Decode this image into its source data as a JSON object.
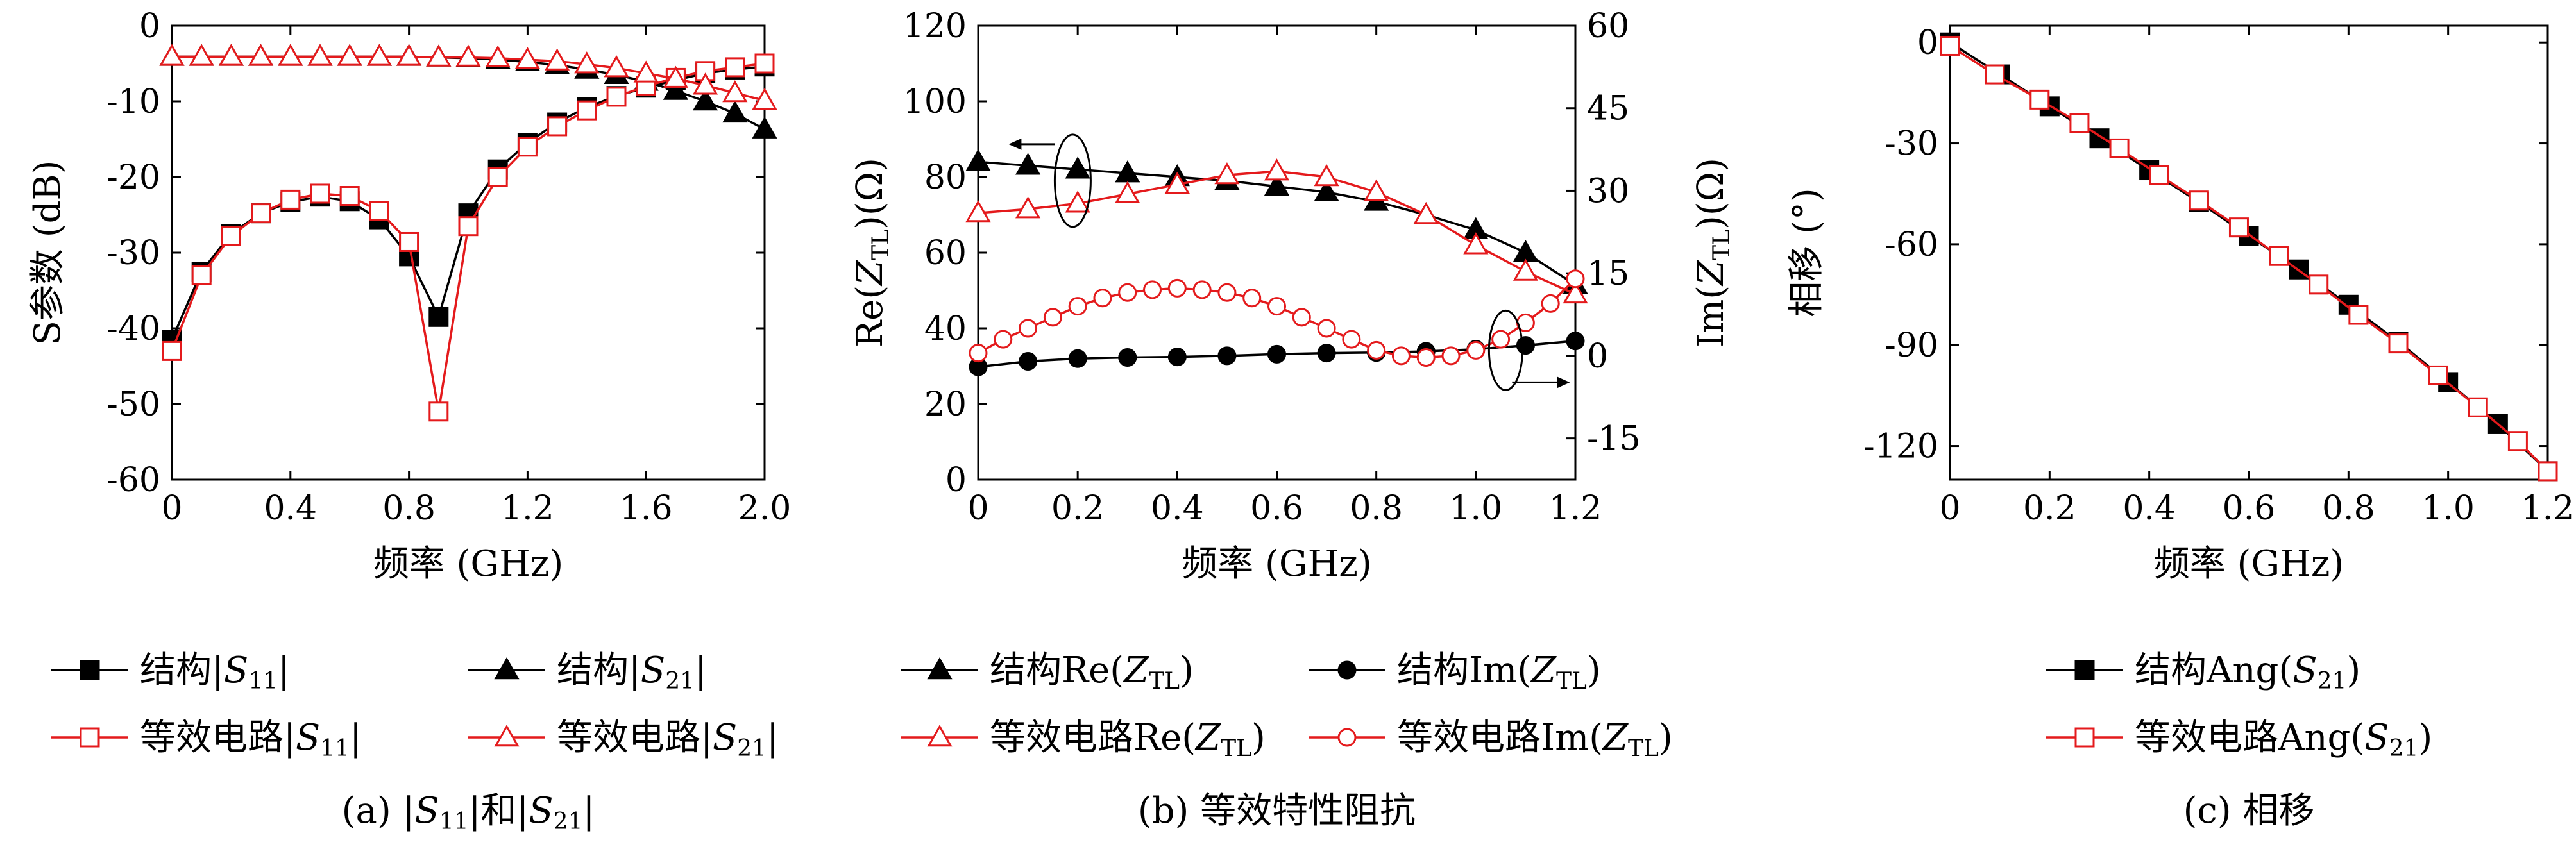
{
  "chart_data": [
    {
      "type": "line",
      "caption": "(a) |S11|和|S21|",
      "xlabel": "频率 (GHz)",
      "ylabel": "S参数 (dB)",
      "xlim": [
        0,
        2.0
      ],
      "ylim": [
        -60,
        0
      ],
      "xticks": [
        "0",
        "0.4",
        "0.8",
        "1.2",
        "1.6",
        "2.0"
      ],
      "yticks": [
        "0",
        "-10",
        "-20",
        "-30",
        "-40",
        "-50",
        "-60"
      ],
      "grid": false,
      "legend_position": "below",
      "series": [
        {
          "name": "结构|S11|",
          "color": "#000000",
          "marker": "square-filled",
          "x": [
            0,
            0.1,
            0.2,
            0.3,
            0.4,
            0.5,
            0.6,
            0.7,
            0.8,
            0.9,
            1.0,
            1.1,
            1.2,
            1.3,
            1.4,
            1.5,
            1.6,
            1.7,
            1.8,
            1.9,
            2.0
          ],
          "y": [
            -41.5,
            -32.5,
            -27.5,
            -24.8,
            -23.3,
            -22.6,
            -23.2,
            -25.6,
            -30.5,
            -38.5,
            -24.8,
            -19.0,
            -15.5,
            -12.8,
            -10.8,
            -9.3,
            -8.2,
            -7.2,
            -6.3,
            -5.8,
            -5.4
          ]
        },
        {
          "name": "结构|S21|",
          "color": "#000000",
          "marker": "triangle-filled",
          "x": [
            0,
            0.1,
            0.2,
            0.3,
            0.4,
            0.5,
            0.6,
            0.7,
            0.8,
            0.9,
            1.0,
            1.1,
            1.2,
            1.3,
            1.4,
            1.5,
            1.6,
            1.7,
            1.8,
            1.9,
            2.0
          ],
          "y": [
            -4.1,
            -4.1,
            -4.1,
            -4.1,
            -4.1,
            -4.1,
            -4.1,
            -4.1,
            -4.1,
            -4.2,
            -4.3,
            -4.5,
            -4.8,
            -5.2,
            -5.8,
            -6.5,
            -7.4,
            -8.6,
            -10.0,
            -11.6,
            -13.7
          ]
        },
        {
          "name": "等效电路|S11|",
          "color": "#e41a1c",
          "marker": "square-open",
          "x": [
            0,
            0.1,
            0.2,
            0.3,
            0.4,
            0.5,
            0.6,
            0.7,
            0.8,
            0.9,
            1.0,
            1.1,
            1.2,
            1.3,
            1.4,
            1.5,
            1.6,
            1.7,
            1.8,
            1.9,
            2.0
          ],
          "y": [
            -43.0,
            -33.0,
            -27.8,
            -24.8,
            -23.0,
            -22.2,
            -22.5,
            -24.5,
            -28.6,
            -51.0,
            -26.5,
            -20.0,
            -16.0,
            -13.3,
            -11.2,
            -9.4,
            -8.0,
            -6.9,
            -6.0,
            -5.5,
            -5.0
          ]
        },
        {
          "name": "等效电路|S21|",
          "color": "#e41a1c",
          "marker": "triangle-open",
          "x": [
            0,
            0.1,
            0.2,
            0.3,
            0.4,
            0.5,
            0.6,
            0.7,
            0.8,
            0.9,
            1.0,
            1.1,
            1.2,
            1.3,
            1.4,
            1.5,
            1.6,
            1.7,
            1.8,
            1.9,
            2.0
          ],
          "y": [
            -4.1,
            -4.1,
            -4.1,
            -4.1,
            -4.1,
            -4.1,
            -4.1,
            -4.1,
            -4.1,
            -4.2,
            -4.2,
            -4.3,
            -4.5,
            -4.7,
            -5.1,
            -5.6,
            -6.3,
            -7.0,
            -7.9,
            -8.9,
            -9.9
          ]
        }
      ]
    },
    {
      "type": "line",
      "caption": "(b) 等效特性阻抗",
      "xlabel": "频率 (GHz)",
      "ylabel_left": "Re(Z_TL)(Ω)",
      "ylabel_right": "Im(Z_TL)(Ω)",
      "xlim": [
        0,
        1.2
      ],
      "ylim_left": [
        0,
        120
      ],
      "ylim_right": [
        -22.5,
        60
      ],
      "xticks": [
        "0",
        "0.2",
        "0.4",
        "0.6",
        "0.8",
        "1.0",
        "1.2"
      ],
      "yticks_left": [
        "0",
        "20",
        "40",
        "60",
        "80",
        "100",
        "120"
      ],
      "yticks_right": [
        "-15",
        "0",
        "15",
        "30",
        "45",
        "60"
      ],
      "grid": false,
      "legend_position": "below",
      "series": [
        {
          "name": "结构Re(Z_TL)",
          "axis": "left",
          "color": "#000000",
          "marker": "triangle-filled",
          "x": [
            0,
            0.1,
            0.2,
            0.3,
            0.4,
            0.5,
            0.6,
            0.7,
            0.8,
            0.9,
            1.0,
            1.1,
            1.2
          ],
          "y": [
            84.0,
            83.0,
            82.0,
            81.0,
            80.0,
            79.0,
            77.5,
            76.0,
            73.5,
            70.0,
            66.0,
            60.0,
            51.5
          ]
        },
        {
          "name": "结构Im(Z_TL)",
          "axis": "right",
          "color": "#000000",
          "marker": "circle-filled",
          "x": [
            0,
            0.1,
            0.2,
            0.3,
            0.4,
            0.5,
            0.6,
            0.7,
            0.8,
            0.9,
            1.0,
            1.1,
            1.2
          ],
          "y": [
            -2.0,
            -1.0,
            -0.5,
            -0.3,
            -0.2,
            0.0,
            0.3,
            0.5,
            0.6,
            0.8,
            1.2,
            1.9,
            2.7
          ]
        },
        {
          "name": "等效电路Re(Z_TL)",
          "axis": "left",
          "color": "#e41a1c",
          "marker": "triangle-open",
          "x": [
            0,
            0.1,
            0.2,
            0.3,
            0.4,
            0.5,
            0.6,
            0.7,
            0.8,
            0.9,
            1.0,
            1.1,
            1.2
          ],
          "y": [
            70.5,
            71.5,
            73.0,
            75.5,
            78.0,
            80.5,
            81.5,
            80.0,
            76.0,
            70.0,
            62.0,
            55.0,
            49.0
          ]
        },
        {
          "name": "等效电路Im(Z_TL)",
          "axis": "right",
          "color": "#e41a1c",
          "marker": "circle-open",
          "x": [
            0,
            0.05,
            0.1,
            0.15,
            0.2,
            0.25,
            0.3,
            0.35,
            0.4,
            0.45,
            0.5,
            0.55,
            0.6,
            0.65,
            0.7,
            0.75,
            0.8,
            0.85,
            0.9,
            0.95,
            1.0,
            1.05,
            1.1,
            1.15,
            1.2
          ],
          "y": [
            0.5,
            3.0,
            5.0,
            7.0,
            9.0,
            10.5,
            11.5,
            12.0,
            12.3,
            12.0,
            11.5,
            10.5,
            9.0,
            7.0,
            5.0,
            3.0,
            1.0,
            0.0,
            -0.3,
            0.0,
            1.0,
            3.0,
            6.0,
            9.5,
            14.0
          ]
        }
      ],
      "annotations": [
        {
          "kind": "ellipse-arrow",
          "target_axis": "left",
          "direction": "left"
        },
        {
          "kind": "ellipse-arrow",
          "target_axis": "right",
          "direction": "right"
        }
      ]
    },
    {
      "type": "line",
      "caption": "(c) 相移",
      "xlabel": "频率 (GHz)",
      "ylabel": "相移 (°)",
      "xlim": [
        0,
        1.2
      ],
      "ylim": [
        -130,
        5
      ],
      "xticks": [
        "0",
        "0.2",
        "0.4",
        "0.6",
        "0.8",
        "1.0",
        "1.2"
      ],
      "yticks": [
        "0",
        "-30",
        "-60",
        "-90",
        "-120"
      ],
      "grid": false,
      "legend_position": "below",
      "series": [
        {
          "name": "结构Ang(S21)",
          "color": "#000000",
          "marker": "square-filled",
          "x": [
            0,
            0.1,
            0.2,
            0.3,
            0.4,
            0.5,
            0.6,
            0.7,
            0.8,
            0.9,
            1.0,
            1.1,
            1.2
          ],
          "y": [
            0,
            -9.5,
            -19.0,
            -28.5,
            -38.0,
            -47.5,
            -57.5,
            -67.5,
            -78.0,
            -89.0,
            -101.0,
            -113.5,
            -127.5
          ]
        },
        {
          "name": "等效电路Ang(S21)",
          "color": "#e41a1c",
          "marker": "square-open",
          "x": [
            0,
            0.09,
            0.18,
            0.26,
            0.34,
            0.42,
            0.5,
            0.58,
            0.66,
            0.74,
            0.82,
            0.9,
            0.98,
            1.06,
            1.14,
            1.2
          ],
          "y": [
            -1.0,
            -9.5,
            -17.0,
            -24.0,
            -31.5,
            -39.5,
            -47.0,
            -55.0,
            -63.5,
            -72.0,
            -81.0,
            -89.5,
            -99.0,
            -108.5,
            -118.5,
            -127.5
          ]
        }
      ]
    }
  ]
}
